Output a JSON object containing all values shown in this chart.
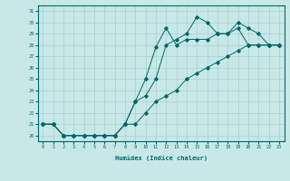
{
  "xlabel": "Humidex (Indice chaleur)",
  "ylabel": "",
  "bg_color": "#c8e8e8",
  "line_color": "#006666",
  "grid_color": "#a8d0d0",
  "xlim": [
    -0.5,
    23.5
  ],
  "ylim": [
    19.5,
    31.5
  ],
  "yticks": [
    20,
    21,
    22,
    23,
    24,
    25,
    26,
    27,
    28,
    29,
    30,
    31
  ],
  "xticks": [
    0,
    1,
    2,
    3,
    4,
    5,
    6,
    7,
    8,
    9,
    10,
    11,
    12,
    13,
    14,
    15,
    16,
    17,
    18,
    19,
    20,
    21,
    22,
    23
  ],
  "line1_x": [
    0,
    1,
    2,
    3,
    4,
    5,
    6,
    7,
    8,
    9,
    10,
    11,
    12,
    13,
    14,
    15,
    16,
    17,
    18,
    19,
    20,
    21,
    22,
    23
  ],
  "line1_y": [
    21,
    21,
    20,
    20,
    20,
    20,
    20,
    20,
    21,
    23,
    25,
    27.8,
    29.5,
    28,
    28.5,
    28.5,
    28.5,
    29,
    29,
    29.5,
    28,
    28,
    28,
    28
  ],
  "line2_x": [
    0,
    1,
    2,
    3,
    4,
    5,
    6,
    7,
    8,
    9,
    10,
    11,
    12,
    13,
    14,
    15,
    16,
    17,
    18,
    19,
    20,
    21,
    22,
    23
  ],
  "line2_y": [
    21,
    21,
    20,
    20,
    20,
    20,
    20,
    20,
    21,
    23,
    23.5,
    25,
    28,
    28.5,
    29,
    30.5,
    30,
    29,
    29,
    30,
    29.5,
    29,
    28,
    28
  ],
  "line3_x": [
    0,
    1,
    2,
    3,
    4,
    5,
    6,
    7,
    8,
    9,
    10,
    11,
    12,
    13,
    14,
    15,
    16,
    17,
    18,
    19,
    20,
    21,
    22,
    23
  ],
  "line3_y": [
    21,
    21,
    20,
    20,
    20,
    20,
    20,
    20,
    21,
    21,
    22,
    23,
    23.5,
    24,
    25,
    25.5,
    26,
    26.5,
    27,
    27.5,
    28,
    28,
    28,
    28
  ]
}
